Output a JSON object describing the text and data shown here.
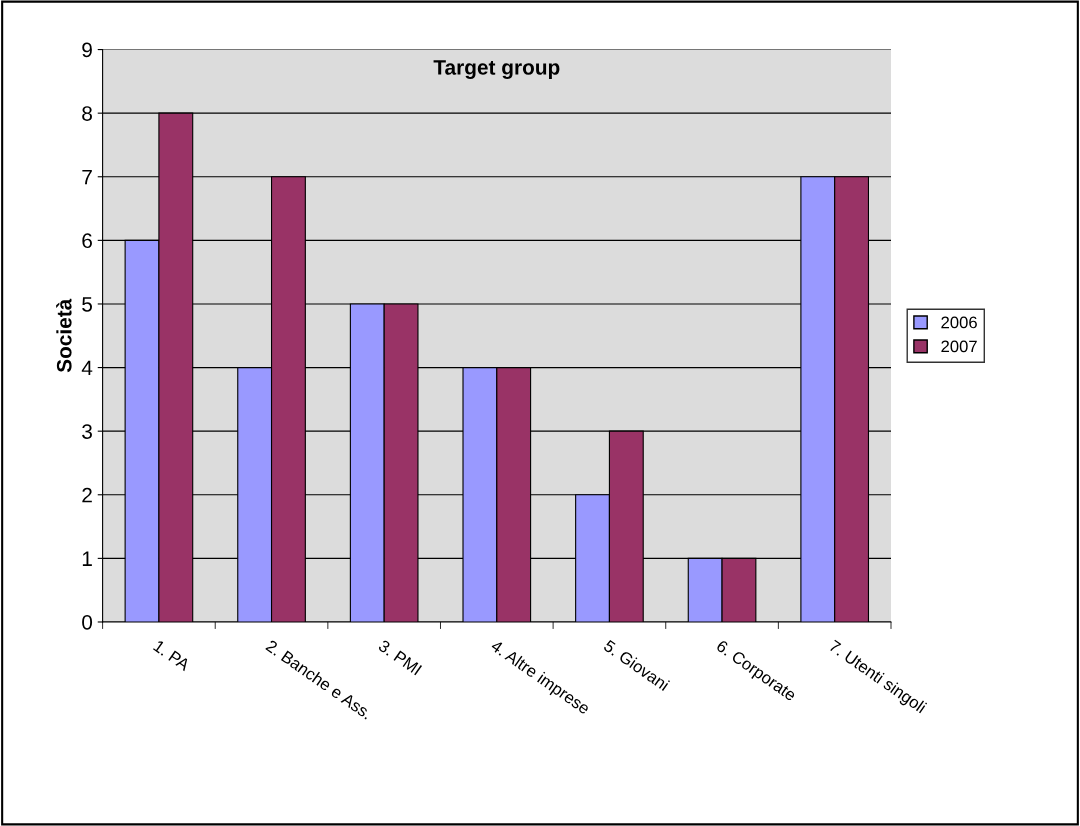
{
  "chart_data": {
    "type": "bar",
    "title": "Target group",
    "ylabel": "Società",
    "categories": [
      "1. PA",
      "2. Banche e Ass.",
      "3. PMI",
      "4. Altre imprese",
      "5. Giovani",
      "6. Corporate",
      "7. Utenti singoli"
    ],
    "series": [
      {
        "name": "2006",
        "color": "#9999ff",
        "values": [
          6,
          4,
          5,
          4,
          2,
          1,
          7
        ]
      },
      {
        "name": "2007",
        "color": "#993366",
        "values": [
          8,
          7,
          5,
          4,
          3,
          1,
          7
        ]
      }
    ],
    "ylim": [
      0,
      9
    ],
    "yticks": [
      0,
      1,
      2,
      3,
      4,
      5,
      6,
      7,
      8,
      9
    ],
    "grid": "y",
    "legend": "right"
  }
}
